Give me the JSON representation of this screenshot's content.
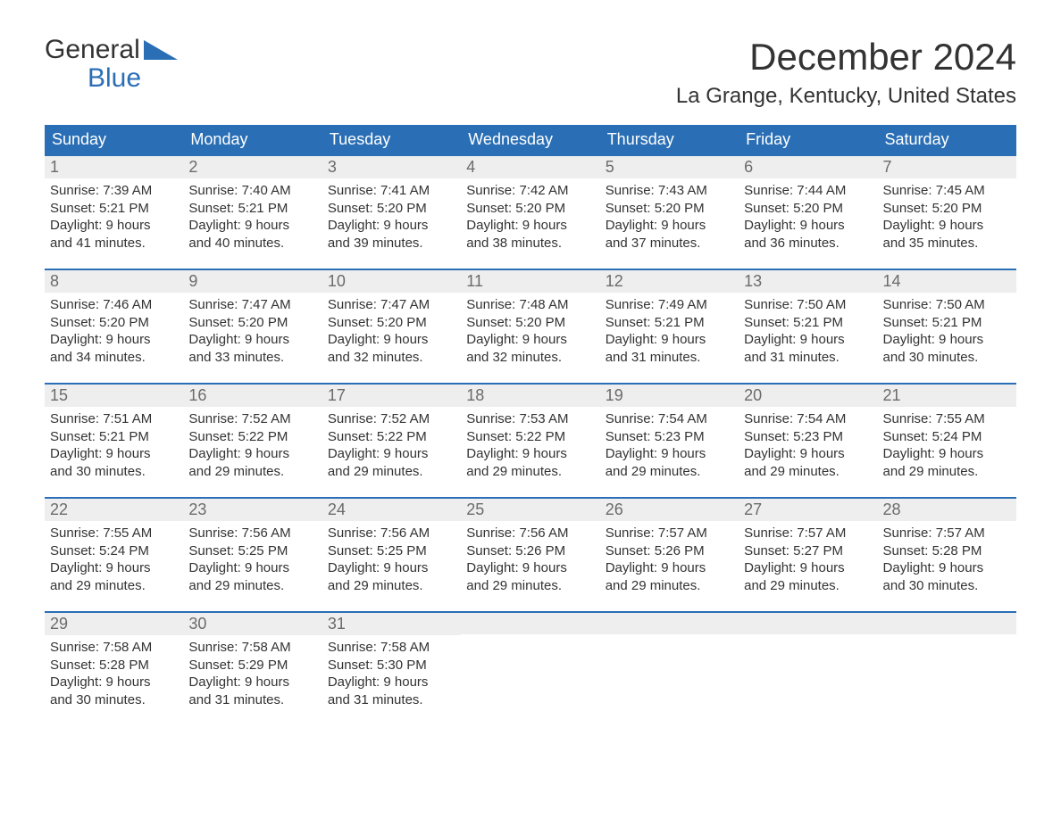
{
  "logo": {
    "top": "General",
    "bottom": "Blue"
  },
  "title": "December 2024",
  "location": "La Grange, Kentucky, United States",
  "colors": {
    "header_bg": "#2a6fb5",
    "header_text": "#ffffff",
    "daynum_bg": "#eeeeee",
    "daynum_text": "#6b6b6b",
    "body_text": "#333333",
    "week_divider": "#2a6fb5",
    "page_bg": "#ffffff"
  },
  "typography": {
    "title_fontsize": 42,
    "location_fontsize": 24,
    "weekday_fontsize": 18,
    "daynum_fontsize": 18,
    "body_fontsize": 15
  },
  "layout": {
    "columns": 7,
    "rows": 5
  },
  "weekdays": [
    "Sunday",
    "Monday",
    "Tuesday",
    "Wednesday",
    "Thursday",
    "Friday",
    "Saturday"
  ],
  "weeks": [
    [
      {
        "num": "1",
        "sunrise": "Sunrise: 7:39 AM",
        "sunset": "Sunset: 5:21 PM",
        "dl1": "Daylight: 9 hours",
        "dl2": "and 41 minutes."
      },
      {
        "num": "2",
        "sunrise": "Sunrise: 7:40 AM",
        "sunset": "Sunset: 5:21 PM",
        "dl1": "Daylight: 9 hours",
        "dl2": "and 40 minutes."
      },
      {
        "num": "3",
        "sunrise": "Sunrise: 7:41 AM",
        "sunset": "Sunset: 5:20 PM",
        "dl1": "Daylight: 9 hours",
        "dl2": "and 39 minutes."
      },
      {
        "num": "4",
        "sunrise": "Sunrise: 7:42 AM",
        "sunset": "Sunset: 5:20 PM",
        "dl1": "Daylight: 9 hours",
        "dl2": "and 38 minutes."
      },
      {
        "num": "5",
        "sunrise": "Sunrise: 7:43 AM",
        "sunset": "Sunset: 5:20 PM",
        "dl1": "Daylight: 9 hours",
        "dl2": "and 37 minutes."
      },
      {
        "num": "6",
        "sunrise": "Sunrise: 7:44 AM",
        "sunset": "Sunset: 5:20 PM",
        "dl1": "Daylight: 9 hours",
        "dl2": "and 36 minutes."
      },
      {
        "num": "7",
        "sunrise": "Sunrise: 7:45 AM",
        "sunset": "Sunset: 5:20 PM",
        "dl1": "Daylight: 9 hours",
        "dl2": "and 35 minutes."
      }
    ],
    [
      {
        "num": "8",
        "sunrise": "Sunrise: 7:46 AM",
        "sunset": "Sunset: 5:20 PM",
        "dl1": "Daylight: 9 hours",
        "dl2": "and 34 minutes."
      },
      {
        "num": "9",
        "sunrise": "Sunrise: 7:47 AM",
        "sunset": "Sunset: 5:20 PM",
        "dl1": "Daylight: 9 hours",
        "dl2": "and 33 minutes."
      },
      {
        "num": "10",
        "sunrise": "Sunrise: 7:47 AM",
        "sunset": "Sunset: 5:20 PM",
        "dl1": "Daylight: 9 hours",
        "dl2": "and 32 minutes."
      },
      {
        "num": "11",
        "sunrise": "Sunrise: 7:48 AM",
        "sunset": "Sunset: 5:20 PM",
        "dl1": "Daylight: 9 hours",
        "dl2": "and 32 minutes."
      },
      {
        "num": "12",
        "sunrise": "Sunrise: 7:49 AM",
        "sunset": "Sunset: 5:21 PM",
        "dl1": "Daylight: 9 hours",
        "dl2": "and 31 minutes."
      },
      {
        "num": "13",
        "sunrise": "Sunrise: 7:50 AM",
        "sunset": "Sunset: 5:21 PM",
        "dl1": "Daylight: 9 hours",
        "dl2": "and 31 minutes."
      },
      {
        "num": "14",
        "sunrise": "Sunrise: 7:50 AM",
        "sunset": "Sunset: 5:21 PM",
        "dl1": "Daylight: 9 hours",
        "dl2": "and 30 minutes."
      }
    ],
    [
      {
        "num": "15",
        "sunrise": "Sunrise: 7:51 AM",
        "sunset": "Sunset: 5:21 PM",
        "dl1": "Daylight: 9 hours",
        "dl2": "and 30 minutes."
      },
      {
        "num": "16",
        "sunrise": "Sunrise: 7:52 AM",
        "sunset": "Sunset: 5:22 PM",
        "dl1": "Daylight: 9 hours",
        "dl2": "and 29 minutes."
      },
      {
        "num": "17",
        "sunrise": "Sunrise: 7:52 AM",
        "sunset": "Sunset: 5:22 PM",
        "dl1": "Daylight: 9 hours",
        "dl2": "and 29 minutes."
      },
      {
        "num": "18",
        "sunrise": "Sunrise: 7:53 AM",
        "sunset": "Sunset: 5:22 PM",
        "dl1": "Daylight: 9 hours",
        "dl2": "and 29 minutes."
      },
      {
        "num": "19",
        "sunrise": "Sunrise: 7:54 AM",
        "sunset": "Sunset: 5:23 PM",
        "dl1": "Daylight: 9 hours",
        "dl2": "and 29 minutes."
      },
      {
        "num": "20",
        "sunrise": "Sunrise: 7:54 AM",
        "sunset": "Sunset: 5:23 PM",
        "dl1": "Daylight: 9 hours",
        "dl2": "and 29 minutes."
      },
      {
        "num": "21",
        "sunrise": "Sunrise: 7:55 AM",
        "sunset": "Sunset: 5:24 PM",
        "dl1": "Daylight: 9 hours",
        "dl2": "and 29 minutes."
      }
    ],
    [
      {
        "num": "22",
        "sunrise": "Sunrise: 7:55 AM",
        "sunset": "Sunset: 5:24 PM",
        "dl1": "Daylight: 9 hours",
        "dl2": "and 29 minutes."
      },
      {
        "num": "23",
        "sunrise": "Sunrise: 7:56 AM",
        "sunset": "Sunset: 5:25 PM",
        "dl1": "Daylight: 9 hours",
        "dl2": "and 29 minutes."
      },
      {
        "num": "24",
        "sunrise": "Sunrise: 7:56 AM",
        "sunset": "Sunset: 5:25 PM",
        "dl1": "Daylight: 9 hours",
        "dl2": "and 29 minutes."
      },
      {
        "num": "25",
        "sunrise": "Sunrise: 7:56 AM",
        "sunset": "Sunset: 5:26 PM",
        "dl1": "Daylight: 9 hours",
        "dl2": "and 29 minutes."
      },
      {
        "num": "26",
        "sunrise": "Sunrise: 7:57 AM",
        "sunset": "Sunset: 5:26 PM",
        "dl1": "Daylight: 9 hours",
        "dl2": "and 29 minutes."
      },
      {
        "num": "27",
        "sunrise": "Sunrise: 7:57 AM",
        "sunset": "Sunset: 5:27 PM",
        "dl1": "Daylight: 9 hours",
        "dl2": "and 29 minutes."
      },
      {
        "num": "28",
        "sunrise": "Sunrise: 7:57 AM",
        "sunset": "Sunset: 5:28 PM",
        "dl1": "Daylight: 9 hours",
        "dl2": "and 30 minutes."
      }
    ],
    [
      {
        "num": "29",
        "sunrise": "Sunrise: 7:58 AM",
        "sunset": "Sunset: 5:28 PM",
        "dl1": "Daylight: 9 hours",
        "dl2": "and 30 minutes."
      },
      {
        "num": "30",
        "sunrise": "Sunrise: 7:58 AM",
        "sunset": "Sunset: 5:29 PM",
        "dl1": "Daylight: 9 hours",
        "dl2": "and 31 minutes."
      },
      {
        "num": "31",
        "sunrise": "Sunrise: 7:58 AM",
        "sunset": "Sunset: 5:30 PM",
        "dl1": "Daylight: 9 hours",
        "dl2": "and 31 minutes."
      },
      {
        "empty": true
      },
      {
        "empty": true
      },
      {
        "empty": true
      },
      {
        "empty": true
      }
    ]
  ]
}
